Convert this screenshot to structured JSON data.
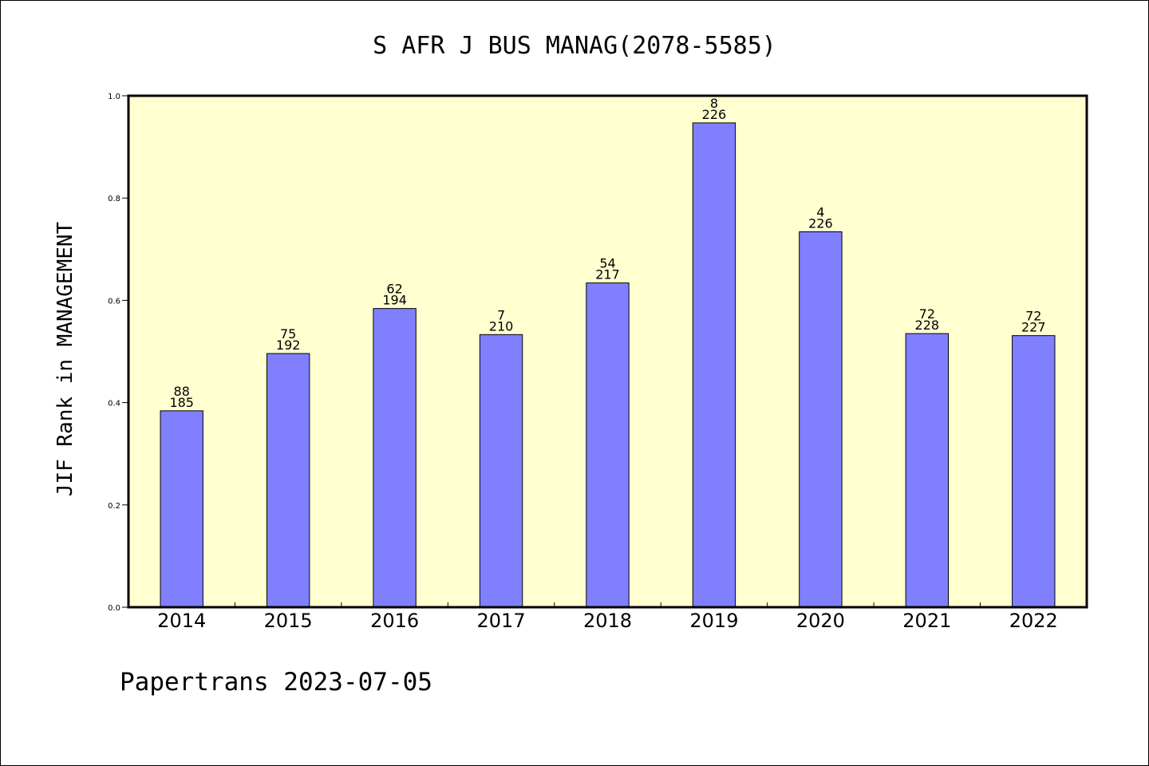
{
  "chart_data": {
    "type": "bar",
    "title": "S AFR J BUS MANAG(2078-5585)",
    "xlabel": "",
    "ylabel": "JIF Rank in MANAGEMENT",
    "ylim": [
      0,
      1.0
    ],
    "yticks": [
      "0.0",
      "0.2",
      "0.4",
      "0.6",
      "0.8",
      "1.0"
    ],
    "categories": [
      "2014",
      "2015",
      "2016",
      "2017",
      "2018",
      "2019",
      "2020",
      "2021",
      "2022"
    ],
    "values": [
      0.384,
      0.496,
      0.584,
      0.533,
      0.634,
      0.947,
      0.734,
      0.535,
      0.531
    ],
    "rank_labels": [
      "88",
      "75",
      "62",
      "7",
      "54",
      "8",
      "4",
      "72",
      "72"
    ],
    "total_labels": [
      "185",
      "192",
      "194",
      "210",
      "217",
      "226",
      "226",
      "228",
      "227"
    ],
    "grid": false,
    "legend": "none",
    "colors": {
      "bar": "#8080ff",
      "plot_background": "#ffffd0",
      "axes": "#000000"
    }
  },
  "footer": {
    "text": "Papertrans 2023-07-05"
  }
}
